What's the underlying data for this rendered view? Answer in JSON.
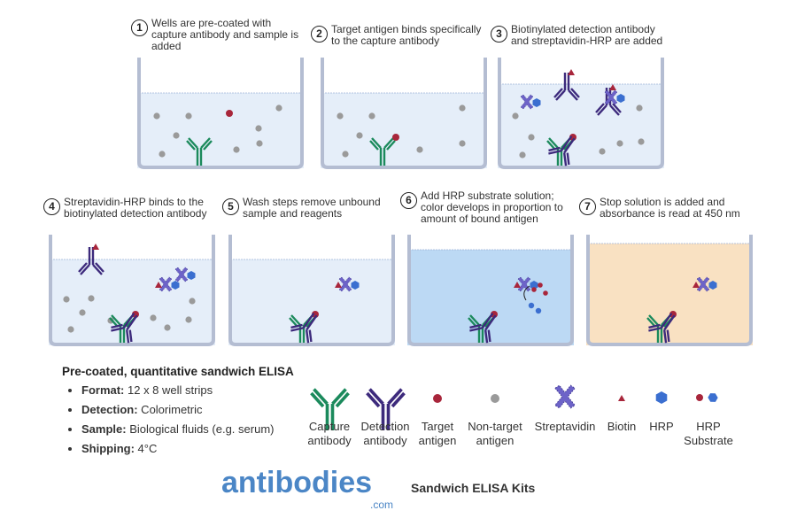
{
  "steps": [
    {
      "num": "1",
      "text": "Wells are pre-coated with capture antibody and sample is added"
    },
    {
      "num": "2",
      "text": "Target antigen binds specifically to the capture antibody"
    },
    {
      "num": "3",
      "text": "Biotinylated detection antibody and streptavidin-HRP are added"
    },
    {
      "num": "4",
      "text": "Streptavidin-HRP binds to the biotinylated detection antibody"
    },
    {
      "num": "5",
      "text": "Wash steps remove unbound sample and reagents"
    },
    {
      "num": "6",
      "text": "Add HRP substrate solution; color develops in proportion to amount of bound antigen"
    },
    {
      "num": "7",
      "text": "Stop solution is added and absorbance is read at 450 nm"
    }
  ],
  "spec": {
    "title": "Pre-coated, quantitative sandwich ELISA",
    "items": [
      {
        "label": "Format:",
        "value": " 12 x 8 well strips"
      },
      {
        "label": "Detection:",
        "value": " Colorimetric"
      },
      {
        "label": "Sample:",
        "value": " Biological fluids (e.g. serum)"
      },
      {
        "label": "Shipping:",
        "value": " 4°C"
      }
    ]
  },
  "legend": [
    {
      "icon": "capture-antibody-icon",
      "label": "Capture\nantibody"
    },
    {
      "icon": "detection-antibody-icon",
      "label": "Detection\nantibody"
    },
    {
      "icon": "target-antigen-icon",
      "label": "Target\nantigen"
    },
    {
      "icon": "non-target-antigen-icon",
      "label": "Non-target\nantigen"
    },
    {
      "icon": "streptavidin-icon",
      "label": "Streptavidin"
    },
    {
      "icon": "biotin-icon",
      "label": "Biotin"
    },
    {
      "icon": "hrp-icon",
      "label": "HRP"
    },
    {
      "icon": "hrp-substrate-icon",
      "label": "HRP\nSubstrate"
    }
  ],
  "brand": {
    "logo": "antibodies",
    "logo_suffix": ".com",
    "tagline": "Sandwich ELISA Kits"
  },
  "colors": {
    "capture": "#1b8a5c",
    "detection": "#3d2a7c",
    "target": "#a8263b",
    "nontarget": "#9a9a9a",
    "streptavidin": "#6d63c8",
    "hrp": "#3b6fd0",
    "well_fill": "#e5eef9",
    "developed": "#bcd9f4",
    "stopped": "#f9e1c2"
  }
}
